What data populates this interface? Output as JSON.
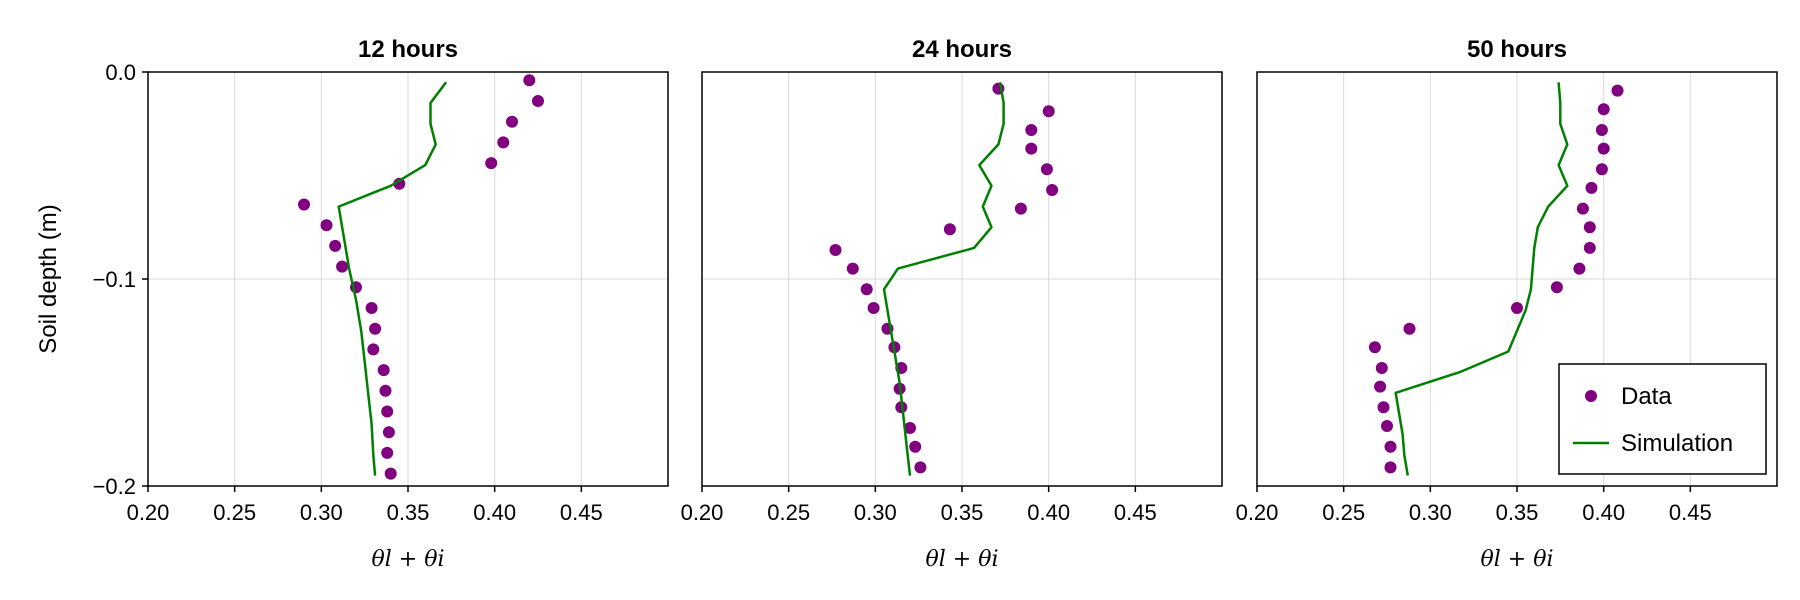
{
  "chart_data": [
    {
      "type": "scatter+line",
      "title": "12 hours",
      "xlabel": "θl + θi",
      "ylabel": "Soil depth (m)",
      "xlim": [
        0.2,
        0.5
      ],
      "ylim": [
        -0.2,
        0.0
      ],
      "xticks": [
        "0.20",
        "0.25",
        "0.30",
        "0.35",
        "0.40",
        "0.45"
      ],
      "yticks": [
        "0.0",
        "-0.1",
        "-0.2"
      ],
      "grid": true,
      "series": [
        {
          "kind": "points",
          "color": "#800080",
          "points": [
            [
              0.42,
              -0.004
            ],
            [
              0.425,
              -0.014
            ],
            [
              0.41,
              -0.024
            ],
            [
              0.405,
              -0.034
            ],
            [
              0.398,
              -0.044
            ],
            [
              0.345,
              -0.054
            ],
            [
              0.29,
              -0.064
            ],
            [
              0.303,
              -0.074
            ],
            [
              0.308,
              -0.084
            ],
            [
              0.312,
              -0.094
            ],
            [
              0.32,
              -0.104
            ],
            [
              0.329,
              -0.114
            ],
            [
              0.331,
              -0.124
            ],
            [
              0.33,
              -0.134
            ],
            [
              0.336,
              -0.144
            ],
            [
              0.337,
              -0.154
            ],
            [
              0.338,
              -0.164
            ],
            [
              0.339,
              -0.174
            ],
            [
              0.338,
              -0.184
            ],
            [
              0.34,
              -0.194
            ]
          ]
        },
        {
          "kind": "line",
          "color": "#008000",
          "points": [
            [
              0.372,
              -0.005
            ],
            [
              0.363,
              -0.015
            ],
            [
              0.363,
              -0.025
            ],
            [
              0.366,
              -0.035
            ],
            [
              0.36,
              -0.045
            ],
            [
              0.34,
              -0.055
            ],
            [
              0.31,
              -0.065
            ],
            [
              0.313,
              -0.08
            ],
            [
              0.316,
              -0.095
            ],
            [
              0.32,
              -0.11
            ],
            [
              0.323,
              -0.125
            ],
            [
              0.325,
              -0.14
            ],
            [
              0.327,
              -0.155
            ],
            [
              0.329,
              -0.17
            ],
            [
              0.33,
              -0.185
            ],
            [
              0.331,
              -0.195
            ]
          ]
        }
      ]
    },
    {
      "type": "scatter+line",
      "title": "24 hours",
      "xlabel": "θl + θi",
      "ylabel": "",
      "xlim": [
        0.2,
        0.5
      ],
      "ylim": [
        -0.2,
        0.0
      ],
      "xticks": [
        "0.20",
        "0.25",
        "0.30",
        "0.35",
        "0.40",
        "0.45"
      ],
      "yticks": [],
      "grid": true,
      "series": [
        {
          "kind": "points",
          "color": "#800080",
          "points": [
            [
              0.371,
              -0.008
            ],
            [
              0.4,
              -0.019
            ],
            [
              0.39,
              -0.028
            ],
            [
              0.39,
              -0.037
            ],
            [
              0.399,
              -0.047
            ],
            [
              0.402,
              -0.057
            ],
            [
              0.384,
              -0.066
            ],
            [
              0.343,
              -0.076
            ],
            [
              0.277,
              -0.086
            ],
            [
              0.287,
              -0.095
            ],
            [
              0.295,
              -0.105
            ],
            [
              0.299,
              -0.114
            ],
            [
              0.307,
              -0.124
            ],
            [
              0.311,
              -0.133
            ],
            [
              0.315,
              -0.143
            ],
            [
              0.314,
              -0.153
            ],
            [
              0.315,
              -0.162
            ],
            [
              0.32,
              -0.172
            ],
            [
              0.323,
              -0.181
            ],
            [
              0.326,
              -0.191
            ]
          ]
        },
        {
          "kind": "line",
          "color": "#008000",
          "points": [
            [
              0.372,
              -0.005
            ],
            [
              0.374,
              -0.015
            ],
            [
              0.374,
              -0.025
            ],
            [
              0.371,
              -0.035
            ],
            [
              0.36,
              -0.045
            ],
            [
              0.367,
              -0.055
            ],
            [
              0.362,
              -0.065
            ],
            [
              0.367,
              -0.075
            ],
            [
              0.357,
              -0.085
            ],
            [
              0.313,
              -0.095
            ],
            [
              0.305,
              -0.105
            ],
            [
              0.308,
              -0.12
            ],
            [
              0.311,
              -0.135
            ],
            [
              0.314,
              -0.15
            ],
            [
              0.316,
              -0.165
            ],
            [
              0.318,
              -0.18
            ],
            [
              0.32,
              -0.195
            ]
          ]
        }
      ]
    },
    {
      "type": "scatter+line",
      "title": "50 hours",
      "xlabel": "θl + θi",
      "ylabel": "",
      "xlim": [
        0.2,
        0.5
      ],
      "ylim": [
        -0.2,
        0.0
      ],
      "xticks": [
        "0.20",
        "0.25",
        "0.30",
        "0.35",
        "0.40",
        "0.45"
      ],
      "yticks": [],
      "grid": true,
      "legend": {
        "position": "bottom-right",
        "entries": [
          "Data",
          "Simulation"
        ]
      },
      "series": [
        {
          "kind": "points",
          "name": "Data",
          "color": "#800080",
          "points": [
            [
              0.408,
              -0.009
            ],
            [
              0.4,
              -0.018
            ],
            [
              0.399,
              -0.028
            ],
            [
              0.4,
              -0.037
            ],
            [
              0.399,
              -0.047
            ],
            [
              0.393,
              -0.056
            ],
            [
              0.388,
              -0.066
            ],
            [
              0.392,
              -0.075
            ],
            [
              0.392,
              -0.085
            ],
            [
              0.386,
              -0.095
            ],
            [
              0.373,
              -0.104
            ],
            [
              0.35,
              -0.114
            ],
            [
              0.288,
              -0.124
            ],
            [
              0.268,
              -0.133
            ],
            [
              0.272,
              -0.143
            ],
            [
              0.271,
              -0.152
            ],
            [
              0.273,
              -0.162
            ],
            [
              0.275,
              -0.171
            ],
            [
              0.277,
              -0.181
            ],
            [
              0.277,
              -0.191
            ]
          ]
        },
        {
          "kind": "line",
          "name": "Simulation",
          "color": "#008000",
          "points": [
            [
              0.374,
              -0.005
            ],
            [
              0.375,
              -0.015
            ],
            [
              0.375,
              -0.025
            ],
            [
              0.379,
              -0.035
            ],
            [
              0.374,
              -0.045
            ],
            [
              0.379,
              -0.055
            ],
            [
              0.368,
              -0.065
            ],
            [
              0.362,
              -0.075
            ],
            [
              0.36,
              -0.085
            ],
            [
              0.359,
              -0.095
            ],
            [
              0.358,
              -0.105
            ],
            [
              0.355,
              -0.115
            ],
            [
              0.35,
              -0.125
            ],
            [
              0.345,
              -0.135
            ],
            [
              0.317,
              -0.145
            ],
            [
              0.28,
              -0.155
            ],
            [
              0.282,
              -0.165
            ],
            [
              0.284,
              -0.175
            ],
            [
              0.285,
              -0.185
            ],
            [
              0.287,
              -0.195
            ]
          ]
        }
      ]
    }
  ]
}
